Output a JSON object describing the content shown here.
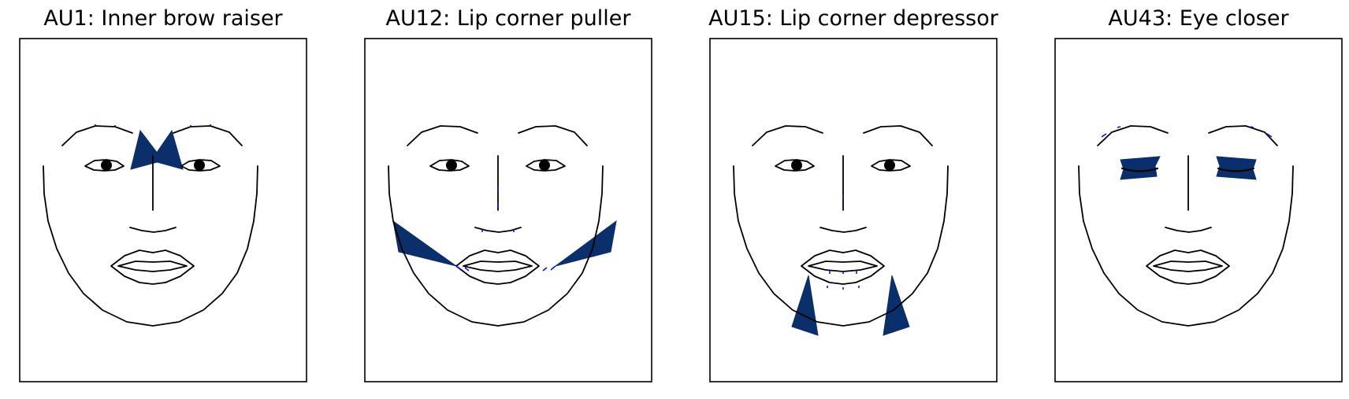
{
  "figure": {
    "panels": [
      {
        "title": "AU1: Inner brow raiser",
        "region": "brow",
        "eyes_closed": false
      },
      {
        "title": "AU12: Lip corner puller",
        "region": "lip-corner-up",
        "eyes_closed": false
      },
      {
        "title": "AU15: Lip corner depressor",
        "region": "lip-corner-down",
        "eyes_closed": false
      },
      {
        "title": "AU43: Eye closer",
        "region": "eyes",
        "eyes_closed": true
      }
    ]
  },
  "colors": {
    "line": "#000000",
    "highlight": "#0b2f6b",
    "arrow": "#1010ee",
    "frame": "#000000"
  }
}
